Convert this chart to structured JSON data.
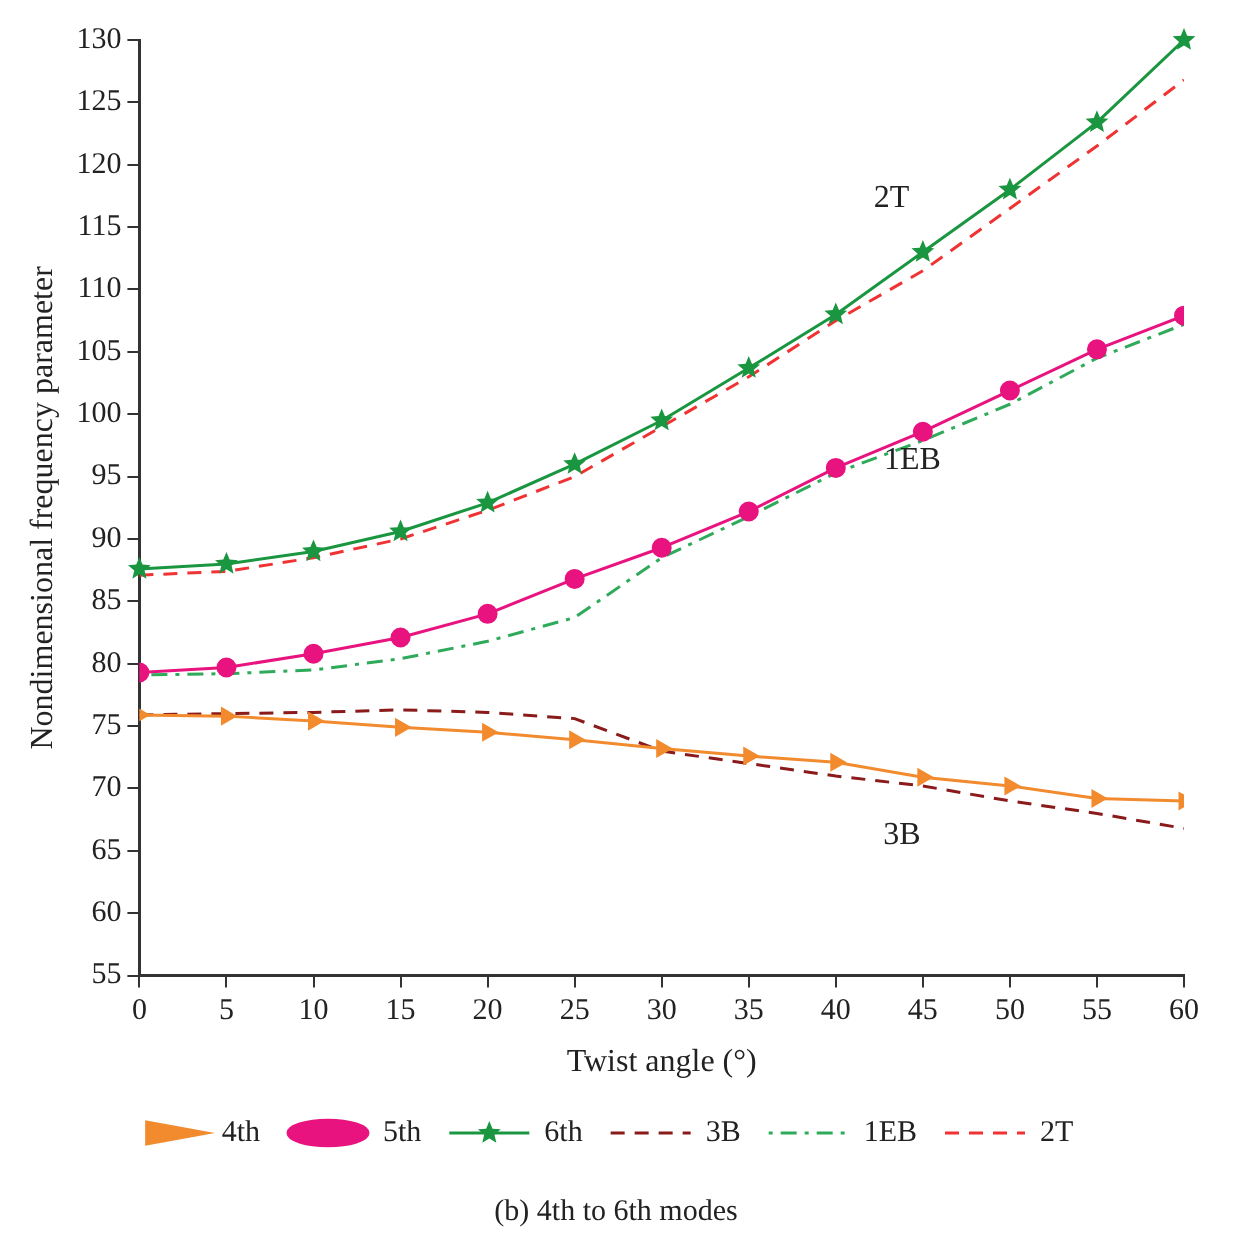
{
  "chart_data": {
    "type": "line",
    "xlabel": "Twist angle (°)",
    "ylabel": "Nondimensional frequency parameter",
    "x": [
      0,
      5,
      10,
      15,
      20,
      25,
      30,
      35,
      40,
      45,
      50,
      55,
      60
    ],
    "xlim": [
      0,
      60
    ],
    "xticks": [
      0,
      5,
      10,
      15,
      20,
      25,
      30,
      35,
      40,
      45,
      50,
      55,
      60
    ],
    "ylim": [
      55,
      130
    ],
    "yticks": [
      55,
      60,
      65,
      70,
      75,
      80,
      85,
      90,
      95,
      100,
      105,
      110,
      115,
      120,
      125,
      130
    ],
    "grid": false,
    "legend": "bottom",
    "series": [
      {
        "name": "4th",
        "color": "#f28a2e",
        "marker": "triangle",
        "line_style": "solid",
        "values": [
          75.9,
          75.8,
          75.4,
          74.9,
          74.5,
          73.9,
          73.2,
          72.6,
          72.1,
          70.9,
          70.2,
          69.2,
          69.0
        ]
      },
      {
        "name": "5th",
        "color": "#e8137f",
        "marker": "circle",
        "line_style": "solid",
        "values": [
          79.3,
          79.7,
          80.8,
          82.1,
          84.0,
          86.8,
          89.3,
          92.2,
          95.7,
          98.6,
          101.9,
          105.2,
          107.9
        ]
      },
      {
        "name": "6th",
        "color": "#1a9641",
        "marker": "star",
        "line_style": "solid",
        "values": [
          87.6,
          88.0,
          89.0,
          90.6,
          92.9,
          96.0,
          99.5,
          103.7,
          108.0,
          113.0,
          118.0,
          123.4,
          130.0
        ]
      },
      {
        "name": "3B",
        "color": "#8b1a1a",
        "marker": "none",
        "line_style": "dashed",
        "values": [
          75.9,
          76.0,
          76.1,
          76.3,
          76.1,
          75.6,
          73.0,
          72.0,
          71.0,
          70.2,
          69.0,
          68.0,
          66.8
        ]
      },
      {
        "name": "1EB",
        "color": "#2eaa5a",
        "marker": "none",
        "line_style": "dotted",
        "values": [
          79.1,
          79.2,
          79.5,
          80.4,
          81.8,
          83.7,
          88.5,
          91.8,
          95.3,
          97.9,
          100.8,
          104.5,
          107.2
        ]
      },
      {
        "name": "2T",
        "color": "#f03232",
        "marker": "none",
        "line_style": "dashed",
        "values": [
          87.1,
          87.4,
          88.5,
          90.0,
          92.3,
          95.0,
          99.0,
          103.0,
          107.5,
          111.5,
          116.5,
          121.5,
          126.8
        ]
      }
    ],
    "annotations": [
      "2T",
      "1EB",
      "3B",
      "(b) 4th to 6th modes"
    ]
  }
}
